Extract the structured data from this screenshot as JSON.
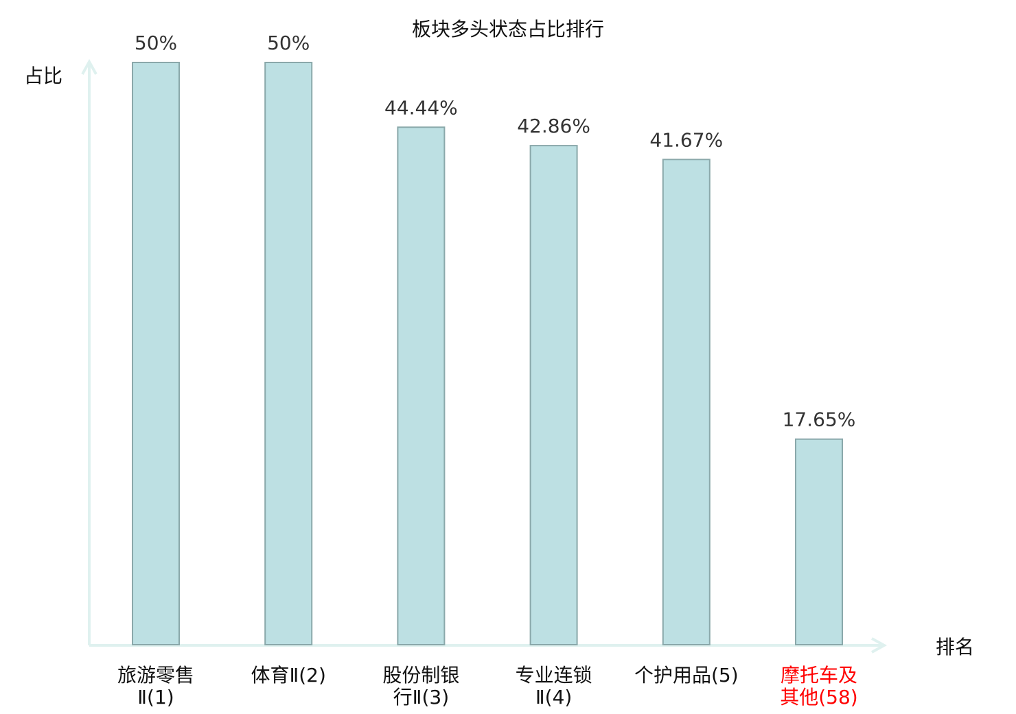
{
  "chart_data": {
    "type": "bar",
    "title": "板块多头状态占比排行",
    "ylabel": "占比",
    "xlabel": "排名",
    "ylim": [
      0,
      50
    ],
    "grid": false,
    "categories": [
      [
        "旅游零售",
        "Ⅱ(1)"
      ],
      [
        "体育Ⅱ(2)"
      ],
      [
        "股份制银",
        "行Ⅱ(3)"
      ],
      [
        "专业连锁",
        "Ⅱ(4)"
      ],
      [
        "个护用品(5)"
      ],
      [
        "摩托车及",
        "其他(58)"
      ]
    ],
    "values": [
      50,
      50,
      44.44,
      42.86,
      41.67,
      17.65
    ],
    "data_labels": [
      "50%",
      "50%",
      "44.44%",
      "42.86%",
      "41.67%",
      "17.65%"
    ],
    "highlight_index": 5,
    "colors": {
      "bar_fill": "#bde0e3",
      "bar_stroke": "#8aa8aa",
      "axis": "#dff1ef",
      "text": "#333333",
      "label": "#111111",
      "highlight": "#ff0000"
    }
  }
}
